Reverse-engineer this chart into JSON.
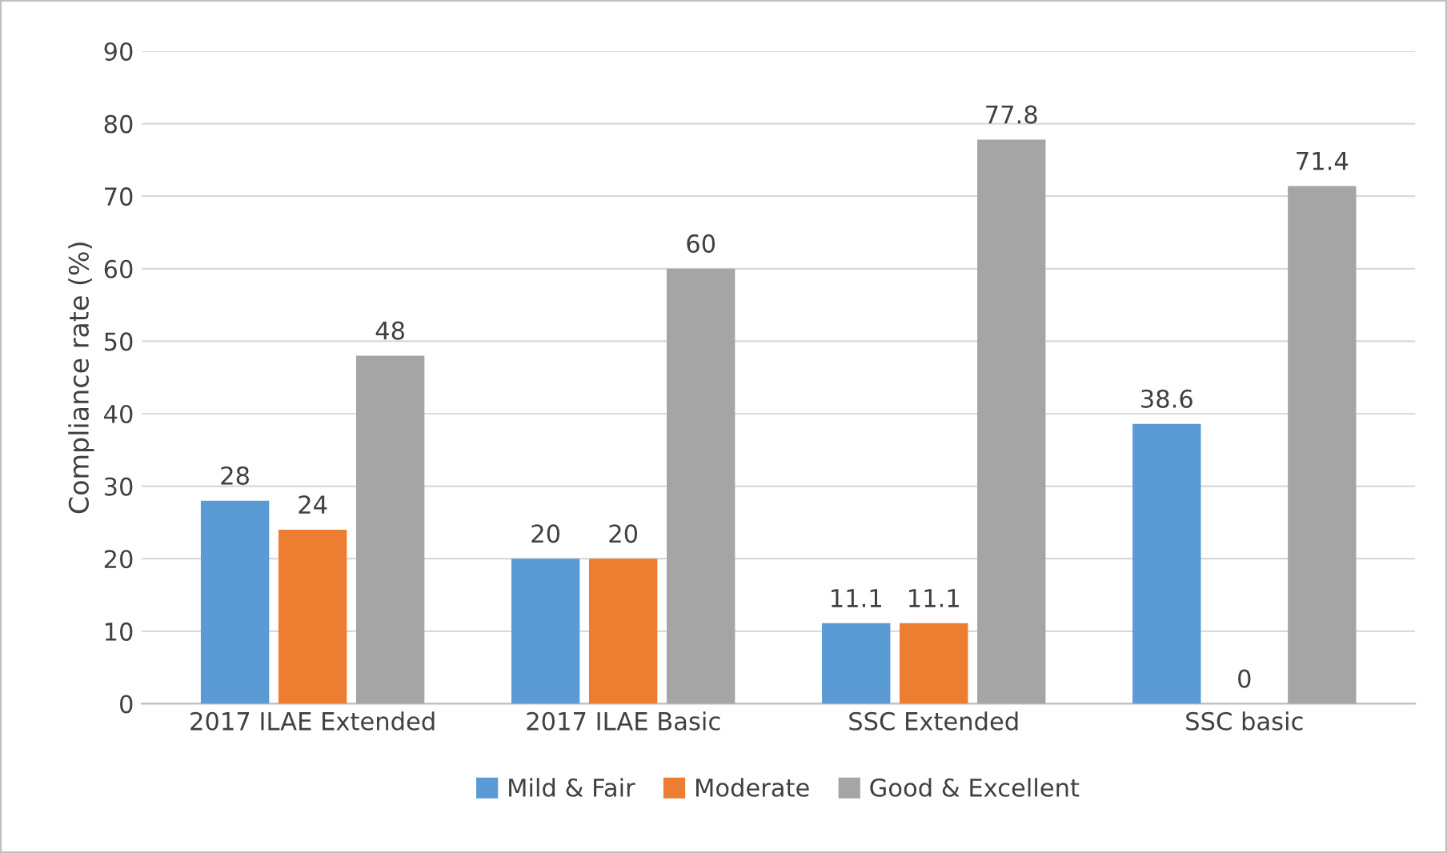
{
  "chart_data": {
    "type": "bar",
    "ylabel": "Compliance rate (%)",
    "categories": [
      "2017 ILAE Extended",
      "2017 ILAE Basic",
      "SSC Extended",
      "SSC basic"
    ],
    "series": [
      {
        "name": "Mild & Fair",
        "color": "#5b9bd5",
        "values": [
          28,
          20,
          11.1,
          38.6
        ]
      },
      {
        "name": "Moderate",
        "color": "#ed7d31",
        "values": [
          24,
          20,
          11.1,
          0
        ]
      },
      {
        "name": "Good & Excellent",
        "color": "#a5a5a5",
        "values": [
          48,
          60,
          77.8,
          71.4
        ]
      }
    ],
    "ylim": [
      0,
      90
    ],
    "yticks": [
      0,
      10,
      20,
      30,
      40,
      50,
      60,
      70,
      80,
      90
    ],
    "grid": "y",
    "legend": "bottom",
    "data_labels": true
  }
}
